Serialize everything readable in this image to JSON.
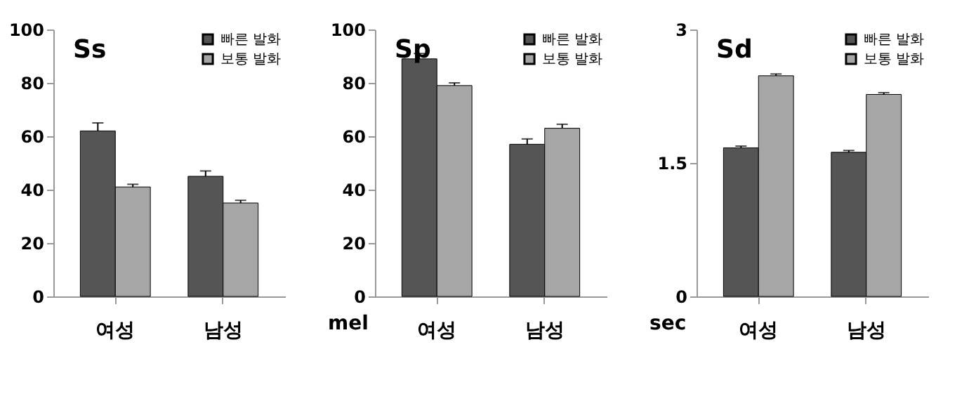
{
  "chart_data": [
    {
      "type": "bar",
      "title": "Ss",
      "categories": [
        "여성",
        "남성"
      ],
      "ylim": [
        0,
        100
      ],
      "yticks": [
        0,
        20,
        40,
        60,
        80,
        100
      ],
      "grid": false,
      "legend": "top right",
      "series": [
        {
          "name": "빠른 발화",
          "color": "#555555",
          "values": [
            62,
            45
          ],
          "errors": [
            3,
            2
          ]
        },
        {
          "name": "보통 발화",
          "color": "#a6a6a6",
          "values": [
            41,
            35
          ],
          "errors": [
            1,
            1
          ]
        }
      ]
    },
    {
      "type": "bar",
      "title": "Sp",
      "ylabel": "mel",
      "categories": [
        "여성",
        "남성"
      ],
      "ylim": [
        0,
        100
      ],
      "yticks": [
        0,
        20,
        40,
        60,
        80,
        100
      ],
      "grid": false,
      "legend": "top right",
      "series": [
        {
          "name": "빠른 발화",
          "color": "#555555",
          "values": [
            89,
            57
          ],
          "errors": [
            2,
            2
          ]
        },
        {
          "name": "보통 발화",
          "color": "#a6a6a6",
          "values": [
            79,
            63
          ],
          "errors": [
            1,
            1.5
          ]
        }
      ]
    },
    {
      "type": "bar",
      "title": "Sd",
      "ylabel": "sec",
      "categories": [
        "여성",
        "남성"
      ],
      "ylim": [
        0,
        3
      ],
      "yticks": [
        0,
        1.5,
        3
      ],
      "grid": false,
      "legend": "top right",
      "series": [
        {
          "name": "빠른 발화",
          "color": "#555555",
          "values": [
            1.67,
            1.62
          ],
          "errors": [
            0.02,
            0.02
          ]
        },
        {
          "name": "보통 발화",
          "color": "#a6a6a6",
          "values": [
            2.48,
            2.27
          ],
          "errors": [
            0.02,
            0.02
          ]
        }
      ]
    }
  ]
}
